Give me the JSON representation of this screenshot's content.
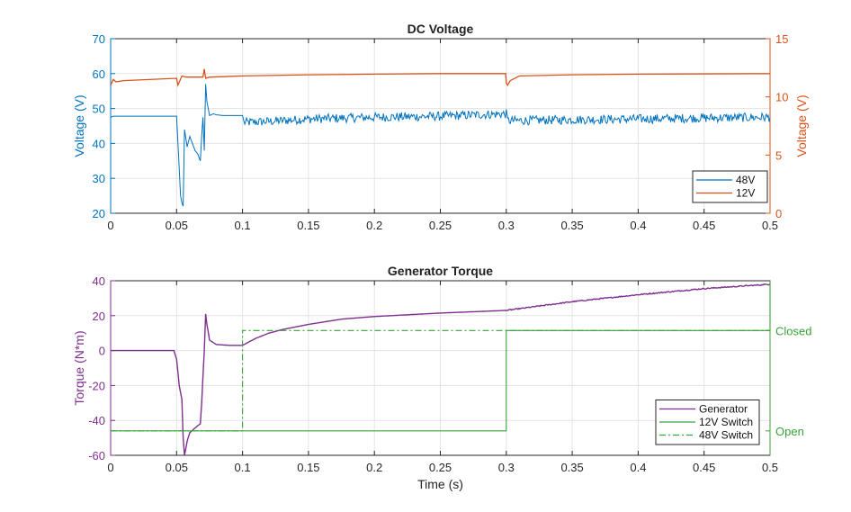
{
  "colors": {
    "blue": "#0072BD",
    "orange": "#D95319",
    "purple": "#7E2F8E",
    "green": "#39A339",
    "axis": "#262626"
  },
  "chart_data": [
    {
      "type": "line",
      "title": "DC Voltage",
      "xlabel": "",
      "ylabel": "Voltage (V)",
      "ylabel_right": "Voltage (V)",
      "xlim": [
        0,
        0.5
      ],
      "ylim": [
        20,
        70
      ],
      "ylim_right": [
        0,
        15
      ],
      "xticks": [
        "0",
        "0.05",
        "0.1",
        "0.15",
        "0.2",
        "0.25",
        "0.3",
        "0.35",
        "0.4",
        "0.45",
        "0.5"
      ],
      "yticks": [
        "20",
        "30",
        "40",
        "50",
        "60",
        "70"
      ],
      "yticks_right": [
        "0",
        "5",
        "10",
        "15"
      ],
      "grid": true,
      "legend_position": "bottom-right",
      "series": [
        {
          "name": "48V",
          "axis": "left",
          "x": [
            0,
            0.002,
            0.05,
            0.051,
            0.052,
            0.053,
            0.054,
            0.055,
            0.056,
            0.058,
            0.06,
            0.062,
            0.064,
            0.066,
            0.068,
            0.069,
            0.07,
            0.071,
            0.072,
            0.073,
            0.074,
            0.075,
            0.078,
            0.08,
            0.085,
            0.09,
            0.1,
            0.101,
            0.12,
            0.15,
            0.2,
            0.25,
            0.3,
            0.301,
            0.35,
            0.4,
            0.45,
            0.5
          ],
          "y": [
            47.5,
            47.8,
            47.8,
            40,
            33,
            25,
            23,
            22,
            44,
            39,
            42,
            40,
            38,
            37,
            35,
            42,
            47.5,
            38,
            57,
            52,
            50,
            48,
            48.5,
            48.2,
            48,
            48,
            48,
            46,
            46.3,
            47,
            47.5,
            47.8,
            48.5,
            46.5,
            46.8,
            47,
            47.3,
            47.5
          ]
        },
        {
          "name": "12V",
          "axis": "right",
          "x": [
            0,
            0.002,
            0.004,
            0.01,
            0.05,
            0.051,
            0.054,
            0.057,
            0.06,
            0.07,
            0.071,
            0.072,
            0.075,
            0.1,
            0.15,
            0.2,
            0.25,
            0.2995,
            0.3,
            0.301,
            0.303,
            0.31,
            0.35,
            0.4,
            0.5
          ],
          "y": [
            11.0,
            11.5,
            11.3,
            11.4,
            11.6,
            11.0,
            11.8,
            11.7,
            11.7,
            11.7,
            12.4,
            11.6,
            11.7,
            11.8,
            11.9,
            11.95,
            12.0,
            12.0,
            11.2,
            11.0,
            11.4,
            11.8,
            11.9,
            11.95,
            12.0
          ]
        }
      ]
    },
    {
      "type": "line",
      "title": "Generator Torque",
      "xlabel": "Time (s)",
      "ylabel": "Torque (N*m)",
      "xlim": [
        0,
        0.5
      ],
      "ylim": [
        -60,
        40
      ],
      "xticks": [
        "0",
        "0.05",
        "0.1",
        "0.15",
        "0.2",
        "0.25",
        "0.3",
        "0.35",
        "0.4",
        "0.45",
        "0.5"
      ],
      "yticks": [
        "-60",
        "-40",
        "-20",
        "0",
        "20",
        "40"
      ],
      "right_labels": [
        "Open",
        "Closed"
      ],
      "grid": true,
      "legend_position": "bottom-right",
      "series": [
        {
          "name": "Generator",
          "x": [
            0,
            0.048,
            0.05,
            0.052,
            0.054,
            0.055,
            0.056,
            0.058,
            0.06,
            0.063,
            0.066,
            0.068,
            0.069,
            0.07,
            0.071,
            0.072,
            0.073,
            0.075,
            0.08,
            0.09,
            0.1,
            0.105,
            0.11,
            0.12,
            0.13,
            0.15,
            0.175,
            0.2,
            0.25,
            0.3,
            0.32,
            0.35,
            0.4,
            0.45,
            0.5
          ],
          "y": [
            0,
            0,
            -5,
            -20,
            -28,
            -50,
            -60,
            -52,
            -47,
            -45,
            -43,
            -42,
            -30,
            -15,
            0,
            21,
            15,
            6,
            3.5,
            3,
            3,
            5,
            7,
            10,
            12,
            15,
            18,
            19.5,
            21.5,
            23,
            25,
            28,
            32,
            35.5,
            38
          ]
        },
        {
          "name": "12V Switch",
          "x": [
            0,
            0.3,
            0.3,
            0.5,
            0.5
          ],
          "y": [
            -46,
            -46,
            11.5,
            11.5,
            40
          ]
        },
        {
          "name": "48V Switch",
          "x": [
            0,
            0.1,
            0.1,
            0.5
          ],
          "y": [
            -46,
            -46,
            11.5,
            11.5
          ]
        }
      ]
    }
  ]
}
